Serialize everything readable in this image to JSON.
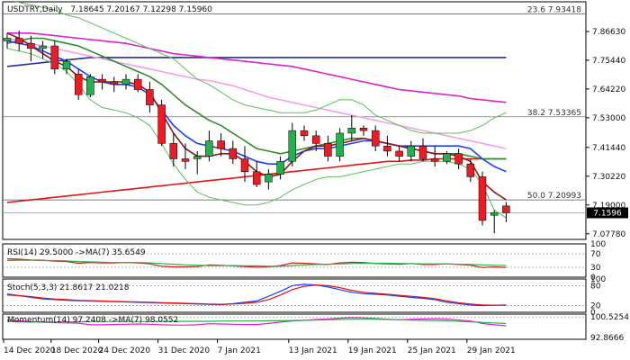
{
  "header": {
    "symbol": "USDTRY,Daily",
    "ohlc": "7.18645 7.20167 7.12298 7.15960"
  },
  "current_price": 7.1596,
  "colors": {
    "bull": "#22b14c",
    "bear": "#ed1c24",
    "ma_dark_blue": "#1f2f9c",
    "ma_magenta": "#e020c8",
    "ma_pink": "#f3a0e3",
    "ma_red": "#e01414",
    "ma_green": "#2e8b2e",
    "ma_blue": "#1a3fff",
    "ma_maroon": "#8b1a1a",
    "bb_green": "#5abf5a",
    "price_tag_bg": "#000000"
  },
  "chart_data": [
    {
      "type": "candlestick",
      "title": "USDTRY,Daily",
      "y_ticks": [
        "7.86630",
        "7.75440",
        "7.64220",
        "7.53000",
        "7.41440",
        "7.30220",
        "7.19000",
        "7.07780"
      ],
      "ylim": [
        7.056,
        7.982
      ],
      "x_ticks": [
        "14 Dec 2020",
        "18 Dec 2020",
        "24 Dec 2020",
        "31 Dec 2020",
        "7 Jan 2021",
        "13 Jan 2021",
        "19 Jan 2021",
        "25 Jan 2021",
        "29 Jan 2021"
      ],
      "fib_levels": [
        {
          "label": "23.6 7.93418",
          "value": 7.93418
        },
        {
          "label": "38.2 7.53365",
          "value": 7.53365
        },
        {
          "label": "50.0 7.20993",
          "value": 7.20993
        }
      ],
      "candles": [
        {
          "o": 7.83,
          "h": 7.86,
          "l": 7.8,
          "c": 7.84
        },
        {
          "o": 7.84,
          "h": 7.87,
          "l": 7.79,
          "c": 7.82
        },
        {
          "o": 7.82,
          "h": 7.85,
          "l": 7.75,
          "c": 7.8
        },
        {
          "o": 7.8,
          "h": 7.83,
          "l": 7.76,
          "c": 7.81
        },
        {
          "o": 7.81,
          "h": 7.83,
          "l": 7.7,
          "c": 7.72
        },
        {
          "o": 7.72,
          "h": 7.76,
          "l": 7.7,
          "c": 7.75
        },
        {
          "o": 7.7,
          "h": 7.72,
          "l": 7.6,
          "c": 7.62
        },
        {
          "o": 7.62,
          "h": 7.7,
          "l": 7.61,
          "c": 7.69
        },
        {
          "o": 7.68,
          "h": 7.7,
          "l": 7.64,
          "c": 7.67
        },
        {
          "o": 7.67,
          "h": 7.69,
          "l": 7.63,
          "c": 7.66
        },
        {
          "o": 7.66,
          "h": 7.7,
          "l": 7.64,
          "c": 7.68
        },
        {
          "o": 7.68,
          "h": 7.7,
          "l": 7.63,
          "c": 7.64
        },
        {
          "o": 7.64,
          "h": 7.67,
          "l": 7.55,
          "c": 7.58
        },
        {
          "o": 7.58,
          "h": 7.6,
          "l": 7.42,
          "c": 7.43
        },
        {
          "o": 7.43,
          "h": 7.47,
          "l": 7.34,
          "c": 7.37
        },
        {
          "o": 7.37,
          "h": 7.43,
          "l": 7.33,
          "c": 7.36
        },
        {
          "o": 7.37,
          "h": 7.4,
          "l": 7.31,
          "c": 7.38
        },
        {
          "o": 7.38,
          "h": 7.48,
          "l": 7.36,
          "c": 7.44
        },
        {
          "o": 7.44,
          "h": 7.47,
          "l": 7.38,
          "c": 7.41
        },
        {
          "o": 7.41,
          "h": 7.44,
          "l": 7.35,
          "c": 7.37
        },
        {
          "o": 7.37,
          "h": 7.42,
          "l": 7.28,
          "c": 7.32
        },
        {
          "o": 7.32,
          "h": 7.36,
          "l": 7.26,
          "c": 7.27
        },
        {
          "o": 7.28,
          "h": 7.33,
          "l": 7.25,
          "c": 7.31
        },
        {
          "o": 7.31,
          "h": 7.38,
          "l": 7.29,
          "c": 7.36
        },
        {
          "o": 7.36,
          "h": 7.51,
          "l": 7.34,
          "c": 7.48
        },
        {
          "o": 7.48,
          "h": 7.5,
          "l": 7.44,
          "c": 7.46
        },
        {
          "o": 7.46,
          "h": 7.48,
          "l": 7.4,
          "c": 7.43
        },
        {
          "o": 7.43,
          "h": 7.46,
          "l": 7.36,
          "c": 7.38
        },
        {
          "o": 7.38,
          "h": 7.49,
          "l": 7.36,
          "c": 7.47
        },
        {
          "o": 7.47,
          "h": 7.54,
          "l": 7.44,
          "c": 7.49
        },
        {
          "o": 7.49,
          "h": 7.5,
          "l": 7.46,
          "c": 7.48
        },
        {
          "o": 7.48,
          "h": 7.5,
          "l": 7.4,
          "c": 7.42
        },
        {
          "o": 7.42,
          "h": 7.46,
          "l": 7.38,
          "c": 7.4
        },
        {
          "o": 7.4,
          "h": 7.42,
          "l": 7.36,
          "c": 7.38
        },
        {
          "o": 7.38,
          "h": 7.44,
          "l": 7.36,
          "c": 7.42
        },
        {
          "o": 7.42,
          "h": 7.45,
          "l": 7.36,
          "c": 7.37
        },
        {
          "o": 7.37,
          "h": 7.42,
          "l": 7.34,
          "c": 7.36
        },
        {
          "o": 7.36,
          "h": 7.4,
          "l": 7.35,
          "c": 7.39
        },
        {
          "o": 7.39,
          "h": 7.41,
          "l": 7.33,
          "c": 7.35
        },
        {
          "o": 7.35,
          "h": 7.37,
          "l": 7.28,
          "c": 7.3
        },
        {
          "o": 7.3,
          "h": 7.32,
          "l": 7.11,
          "c": 7.13
        },
        {
          "o": 7.15,
          "h": 7.17,
          "l": 7.08,
          "c": 7.16
        },
        {
          "o": 7.18645,
          "h": 7.20167,
          "l": 7.12298,
          "c": 7.1596
        }
      ],
      "ma_series": [
        {
          "color_key": "ma_dark_blue",
          "width": 1.6,
          "values": [
            7.73,
            7.735,
            7.74,
            7.745,
            7.75,
            7.755,
            7.76,
            7.765,
            7.765,
            7.765,
            7.765,
            7.765,
            7.765,
            7.765,
            7.765,
            7.765,
            7.765,
            7.765,
            7.765,
            7.765,
            7.765,
            7.765,
            7.765,
            7.765,
            7.765,
            7.765,
            7.765,
            7.765,
            7.765,
            7.765,
            7.765,
            7.765,
            7.765,
            7.765,
            7.765,
            7.765,
            7.765,
            7.765,
            7.765,
            7.765,
            7.765,
            7.765,
            7.765
          ]
        },
        {
          "color_key": "ma_magenta",
          "width": 1.6,
          "values": [
            7.86,
            7.86,
            7.86,
            7.855,
            7.85,
            7.845,
            7.84,
            7.835,
            7.83,
            7.825,
            7.82,
            7.81,
            7.8,
            7.79,
            7.78,
            7.775,
            7.77,
            7.765,
            7.76,
            7.755,
            7.75,
            7.745,
            7.74,
            7.735,
            7.73,
            7.72,
            7.71,
            7.7,
            7.69,
            7.68,
            7.67,
            7.66,
            7.65,
            7.64,
            7.635,
            7.63,
            7.625,
            7.62,
            7.615,
            7.605,
            7.6,
            7.595,
            7.59
          ]
        },
        {
          "color_key": "ma_pink",
          "width": 1.6,
          "values": [
            7.84,
            7.83,
            7.82,
            7.81,
            7.8,
            7.79,
            7.78,
            7.77,
            7.76,
            7.75,
            7.74,
            7.73,
            7.72,
            7.71,
            7.7,
            7.69,
            7.68,
            7.675,
            7.665,
            7.655,
            7.64,
            7.625,
            7.61,
            7.6,
            7.59,
            7.58,
            7.57,
            7.56,
            7.55,
            7.54,
            7.53,
            7.52,
            7.51,
            7.5,
            7.49,
            7.48,
            7.47,
            7.46,
            7.45,
            7.44,
            7.43,
            7.42,
            7.41
          ]
        },
        {
          "color_key": "ma_red",
          "width": 1.6,
          "values": [
            7.2,
            7.205,
            7.21,
            7.215,
            7.22,
            7.225,
            7.23,
            7.235,
            7.24,
            7.245,
            7.25,
            7.255,
            7.26,
            7.265,
            7.27,
            7.275,
            7.28,
            7.285,
            7.29,
            7.295,
            7.3,
            7.305,
            7.31,
            7.315,
            7.32,
            7.325,
            7.33,
            7.335,
            7.34,
            7.345,
            7.35,
            7.355,
            7.36,
            7.36,
            7.365,
            7.365,
            7.37,
            7.37,
            7.37,
            7.37,
            7.37,
            7.37,
            7.37
          ]
        },
        {
          "color_key": "ma_green",
          "width": 1.6,
          "values": [
            7.82,
            7.83,
            7.84,
            7.84,
            7.83,
            7.82,
            7.81,
            7.79,
            7.77,
            7.75,
            7.73,
            7.71,
            7.69,
            7.66,
            7.62,
            7.58,
            7.55,
            7.52,
            7.5,
            7.47,
            7.44,
            7.41,
            7.4,
            7.39,
            7.4,
            7.41,
            7.42,
            7.43,
            7.44,
            7.45,
            7.45,
            7.44,
            7.43,
            7.42,
            7.41,
            7.4,
            7.39,
            7.39,
            7.39,
            7.38,
            7.37,
            7.37,
            7.37
          ]
        },
        {
          "color_key": "ma_blue",
          "width": 1.6,
          "values": [
            7.83,
            7.82,
            7.81,
            7.79,
            7.77,
            7.75,
            7.72,
            7.69,
            7.67,
            7.66,
            7.66,
            7.65,
            7.62,
            7.56,
            7.5,
            7.46,
            7.43,
            7.42,
            7.41,
            7.4,
            7.38,
            7.36,
            7.35,
            7.35,
            7.38,
            7.4,
            7.41,
            7.41,
            7.42,
            7.43,
            7.44,
            7.44,
            7.43,
            7.42,
            7.42,
            7.42,
            7.42,
            7.42,
            7.42,
            7.41,
            7.37,
            7.34,
            7.32
          ]
        },
        {
          "color_key": "ma_maroon",
          "width": 1.6,
          "values": [
            7.86,
            7.84,
            7.81,
            7.78,
            7.75,
            7.73,
            7.69,
            7.67,
            7.67,
            7.67,
            7.67,
            7.66,
            7.63,
            7.55,
            7.47,
            7.41,
            7.38,
            7.38,
            7.39,
            7.39,
            7.36,
            7.32,
            7.3,
            7.31,
            7.36,
            7.4,
            7.42,
            7.42,
            7.43,
            7.44,
            7.45,
            7.44,
            7.43,
            7.42,
            7.41,
            7.4,
            7.39,
            7.39,
            7.38,
            7.36,
            7.28,
            7.24,
            7.21
          ]
        },
        {
          "color_key": "bb_green",
          "width": 1,
          "values": [
            7.99,
            7.98,
            7.97,
            7.96,
            7.95,
            7.93,
            7.92,
            7.9,
            7.88,
            7.86,
            7.84,
            7.82,
            7.8,
            7.78,
            7.76,
            7.72,
            7.68,
            7.66,
            7.63,
            7.6,
            7.58,
            7.57,
            7.56,
            7.55,
            7.55,
            7.55,
            7.56,
            7.58,
            7.6,
            7.6,
            7.58,
            7.54,
            7.52,
            7.5,
            7.48,
            7.47,
            7.47,
            7.47,
            7.47,
            7.48,
            7.5,
            7.53,
            7.55
          ]
        },
        {
          "color_key": "bb_green",
          "width": 1,
          "values": [
            7.8,
            7.79,
            7.78,
            7.76,
            7.74,
            7.71,
            7.66,
            7.6,
            7.57,
            7.56,
            7.55,
            7.53,
            7.5,
            7.43,
            7.35,
            7.29,
            7.24,
            7.22,
            7.21,
            7.2,
            7.19,
            7.19,
            7.2,
            7.22,
            7.25,
            7.27,
            7.29,
            7.3,
            7.3,
            7.31,
            7.32,
            7.33,
            7.34,
            7.35,
            7.35,
            7.36,
            7.36,
            7.36,
            7.35,
            7.33,
            7.27,
            7.17,
            7.14
          ]
        }
      ]
    },
    {
      "type": "line",
      "title": "RSI(14) 29.5000 ->MA(7) 35.6549",
      "y_ticks": [
        "100",
        "70",
        "30",
        "0"
      ],
      "ylim": [
        0,
        100
      ],
      "series": [
        {
          "color_key": "ma_red",
          "values": [
            55,
            54,
            52,
            51,
            48,
            47,
            42,
            44,
            43,
            43,
            44,
            43,
            40,
            33,
            31,
            31,
            32,
            37,
            36,
            34,
            32,
            30,
            31,
            35,
            43,
            42,
            40,
            38,
            43,
            45,
            44,
            41,
            40,
            39,
            41,
            38,
            38,
            40,
            38,
            36,
            29,
            31,
            29.5
          ]
        },
        {
          "color_key": "bull",
          "values": [
            50,
            51,
            51,
            50,
            50,
            49,
            47,
            46,
            45,
            44,
            44,
            44,
            43,
            41,
            39,
            37,
            36,
            35,
            35,
            35,
            34,
            34,
            33,
            33,
            35,
            37,
            38,
            39,
            40,
            41,
            42,
            42,
            42,
            41,
            41,
            40,
            40,
            40,
            39,
            38,
            37,
            36,
            35.65
          ]
        }
      ]
    },
    {
      "type": "line",
      "title": "Stoch(5,3,3) 21.8617 21.0218",
      "y_ticks": [
        "100",
        "80",
        "20",
        "0"
      ],
      "ylim": [
        0,
        100
      ],
      "series": [
        {
          "color_key": "ma_blue",
          "values": [
            55,
            50,
            45,
            40,
            38,
            36,
            35,
            34,
            33,
            32,
            31,
            30,
            29,
            28,
            27,
            26,
            25,
            24,
            23,
            26,
            30,
            34,
            48,
            63,
            80,
            84,
            82,
            76,
            68,
            60,
            56,
            54,
            52,
            48,
            45,
            42,
            38,
            30,
            26,
            22,
            20,
            21,
            21.86
          ]
        },
        {
          "color_key": "ma_red",
          "values": [
            52,
            50,
            47,
            43,
            40,
            38,
            36,
            35,
            34,
            33,
            32,
            31,
            30,
            29,
            28,
            27,
            26,
            25,
            24,
            25,
            27,
            30,
            38,
            52,
            68,
            78,
            82,
            80,
            74,
            66,
            60,
            57,
            54,
            51,
            48,
            45,
            41,
            34,
            29,
            25,
            22,
            21,
            21.02
          ]
        }
      ]
    },
    {
      "type": "line",
      "title": "Momentum(14) 97.2408 ->MA(7) 98.0552",
      "y_ticks": [
        "100.5254",
        "92.8666"
      ],
      "ylim": [
        92.2,
        101.6
      ],
      "series": [
        {
          "color_key": "ma_magenta",
          "values": [
            99.4,
            99.1,
            98.8,
            98.5,
            98.4,
            98.3,
            98.2,
            97.6,
            97.6,
            97.7,
            97.8,
            97.9,
            97.8,
            97.6,
            97.5,
            97.5,
            97.6,
            98.0,
            97.9,
            97.8,
            97.7,
            97.7,
            98.1,
            98.6,
            99.0,
            99.3,
            99.6,
            99.8,
            100.1,
            100.3,
            100.2,
            100.0,
            99.7,
            99.5,
            99.7,
            99.8,
            99.9,
            99.8,
            99.4,
            99.0,
            98.1,
            97.6,
            97.24
          ]
        },
        {
          "color_key": "bull",
          "values": [
            98.8,
            98.7,
            98.6,
            98.6,
            98.6,
            98.7,
            98.7,
            98.8,
            98.8,
            98.8,
            98.8,
            98.8,
            98.8,
            98.9,
            98.9,
            98.9,
            98.9,
            98.9,
            99.0,
            99.0,
            99.0,
            99.0,
            99.1,
            99.1,
            99.2,
            99.3,
            99.4,
            99.5,
            99.6,
            99.7,
            99.7,
            99.7,
            99.6,
            99.5,
            99.4,
            99.3,
            99.2,
            99.1,
            98.9,
            98.7,
            98.5,
            98.3,
            98.06
          ]
        }
      ]
    }
  ]
}
